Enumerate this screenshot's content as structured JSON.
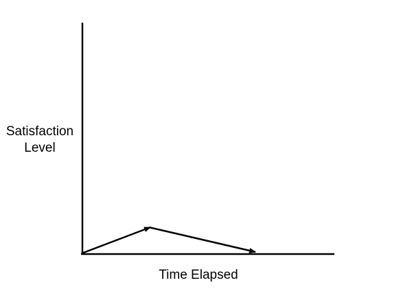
{
  "y_axis_label": [
    "Satisfaction",
    "Level"
  ],
  "x_axis_label": "Time Elapsed"
}
